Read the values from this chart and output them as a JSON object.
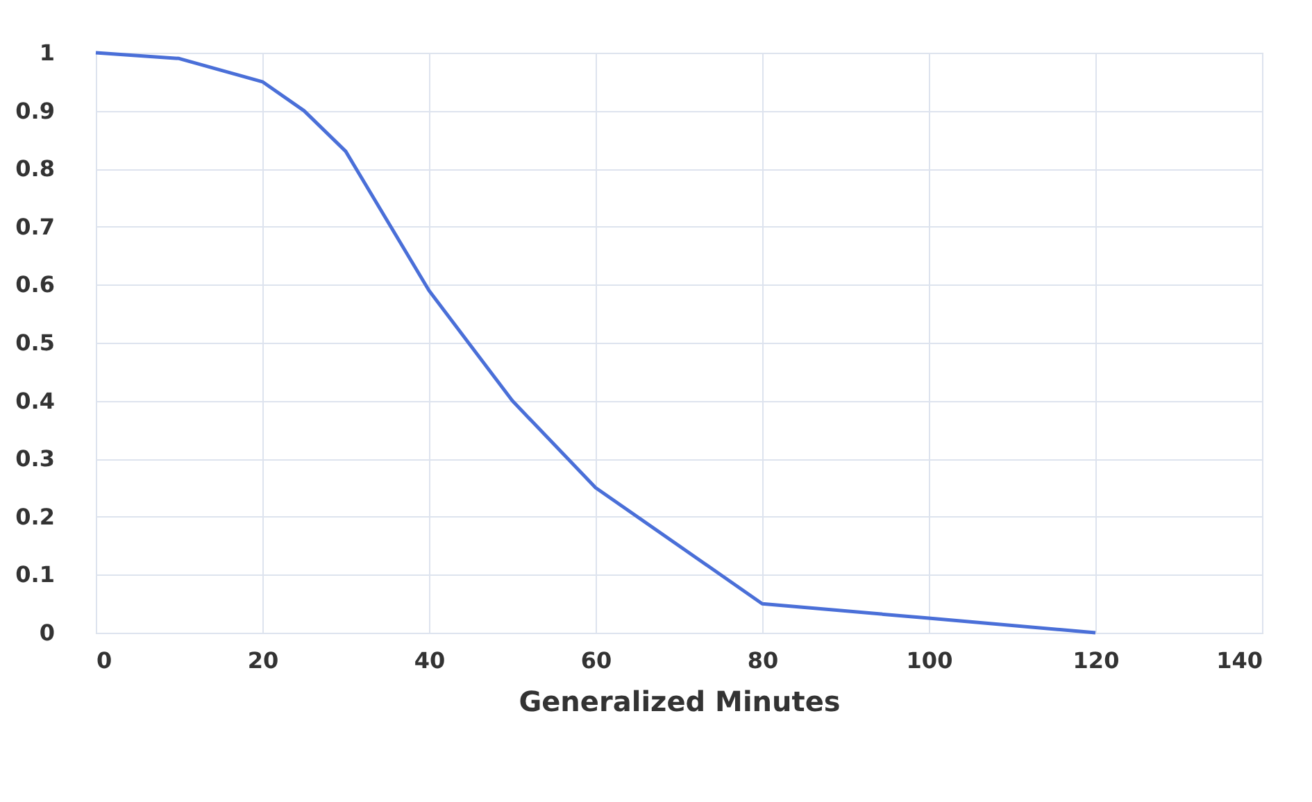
{
  "chart_data": {
    "type": "line",
    "xlabel": "Generalized Minutes",
    "x": [
      0,
      10,
      20,
      25,
      30,
      40,
      50,
      60,
      80,
      100,
      120
    ],
    "series": [
      {
        "color": "#4a6fd8",
        "values": [
          1,
          0.99,
          0.95,
          0.9,
          0.83,
          0.59,
          0.4,
          0.25,
          0.05,
          0.025,
          0
        ]
      }
    ],
    "xlim": [
      0,
      140
    ],
    "xticks": [
      0,
      20,
      40,
      60,
      80,
      100,
      120,
      140
    ],
    "ylim": [
      0,
      1
    ],
    "yticks": [
      0,
      0.1,
      0.2,
      0.3,
      0.4,
      0.5,
      0.6,
      0.7,
      0.8,
      0.9,
      1
    ],
    "grid": true,
    "marker": "none",
    "line_style": "solid"
  }
}
